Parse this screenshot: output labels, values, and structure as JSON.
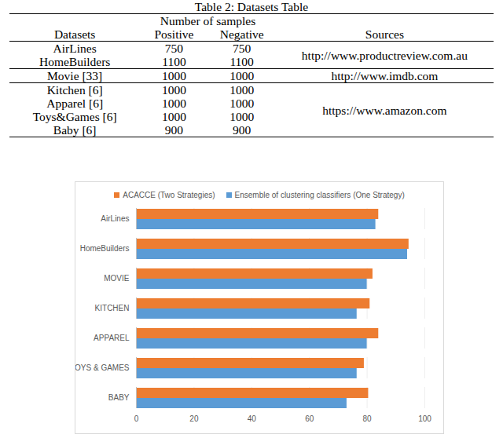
{
  "table": {
    "caption": "Table 2: Datasets Table",
    "header": {
      "datasets": "Datasets",
      "samples": "Number of samples",
      "positive": "Positive",
      "negative": "Negative",
      "sources": "Sources"
    },
    "groups": [
      {
        "source": "http://www.productreview.com.au",
        "rows": [
          [
            "AirLines",
            750,
            750
          ],
          [
            "HomeBuilders",
            1100,
            1100
          ]
        ]
      },
      {
        "source": "http://www.imdb.com",
        "rows": [
          [
            "Movie [33]",
            1000,
            1000
          ]
        ]
      },
      {
        "source": "https://www.amazon.com",
        "rows": [
          [
            "Kitchen [6]",
            1000,
            1000
          ],
          [
            "Apparel [6]",
            1000,
            1000
          ],
          [
            "Toys&Games [6]",
            1000,
            1000
          ],
          [
            "Baby [6]",
            900,
            900
          ]
        ]
      }
    ]
  },
  "chart_data": {
    "type": "bar",
    "orientation": "horizontal",
    "categories": [
      "AirLines",
      "HomeBuilders",
      "MOVIE",
      "KITCHEN",
      "APPAREL",
      "TOYS & GAMES",
      "BABY"
    ],
    "series": [
      {
        "name": "ACACCE (Two Strategies)",
        "color": "#ed7d31",
        "values": [
          84,
          94.5,
          82,
          81,
          84,
          79,
          80.5
        ]
      },
      {
        "name": "Ensemble of clustering classifiers (One Strategy)",
        "color": "#5b9bd5",
        "values": [
          83,
          94,
          80,
          76.5,
          80,
          76.5,
          73
        ]
      }
    ],
    "xlim": [
      0,
      100
    ],
    "xticks": [
      0,
      20,
      40,
      60,
      80,
      100
    ],
    "grid": true,
    "legend": "top"
  }
}
